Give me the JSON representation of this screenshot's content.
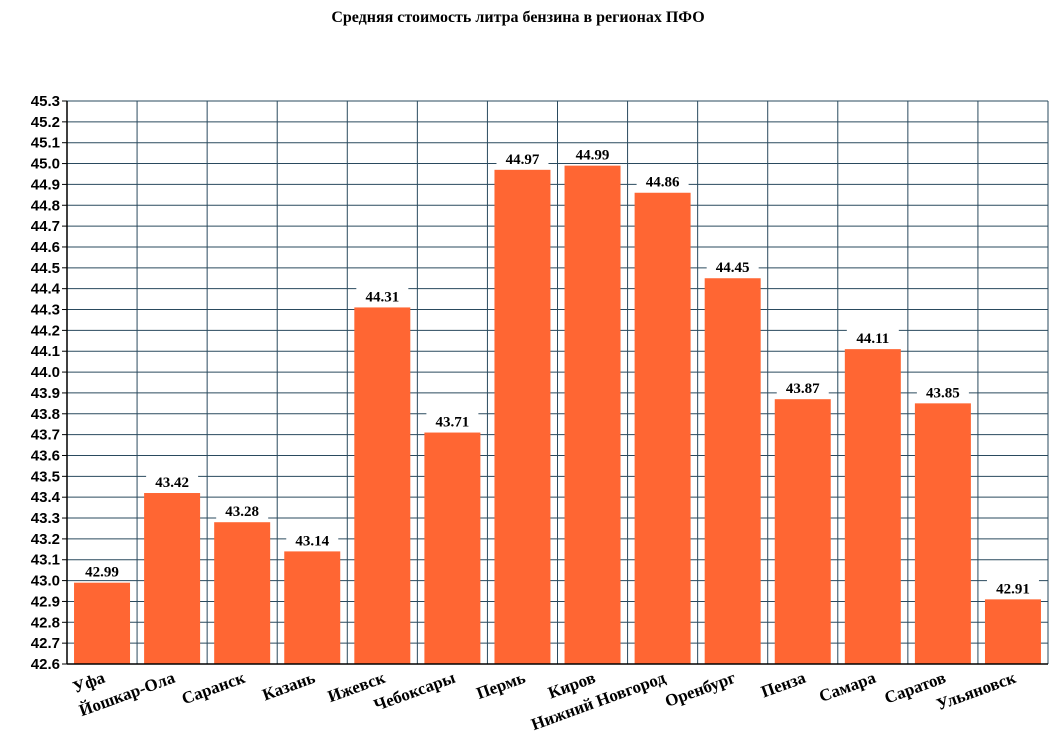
{
  "chart_data": {
    "type": "bar",
    "title": "Средняя стоимость литра бензина в регионах ПФО",
    "xlabel": "",
    "ylabel": "",
    "ylim": [
      42.6,
      45.3
    ],
    "ytick_step": 0.1,
    "grid": true,
    "legend": "none",
    "categories": [
      "Уфа",
      "Йошкар-Ола",
      "Саранск",
      "Казань",
      "Ижевск",
      "Чебоксары",
      "Пермь",
      "Киров",
      "Нижний Новгород",
      "Оренбург",
      "Пенза",
      "Самара",
      "Саратов",
      "Ульяновск"
    ],
    "values": [
      42.99,
      43.42,
      43.28,
      43.14,
      44.31,
      43.71,
      44.97,
      44.99,
      44.86,
      44.45,
      43.87,
      44.11,
      43.85,
      42.91
    ],
    "colors": {
      "bar": "#FF6633",
      "grid": "#2A4A5E",
      "axis": "#000000"
    }
  }
}
